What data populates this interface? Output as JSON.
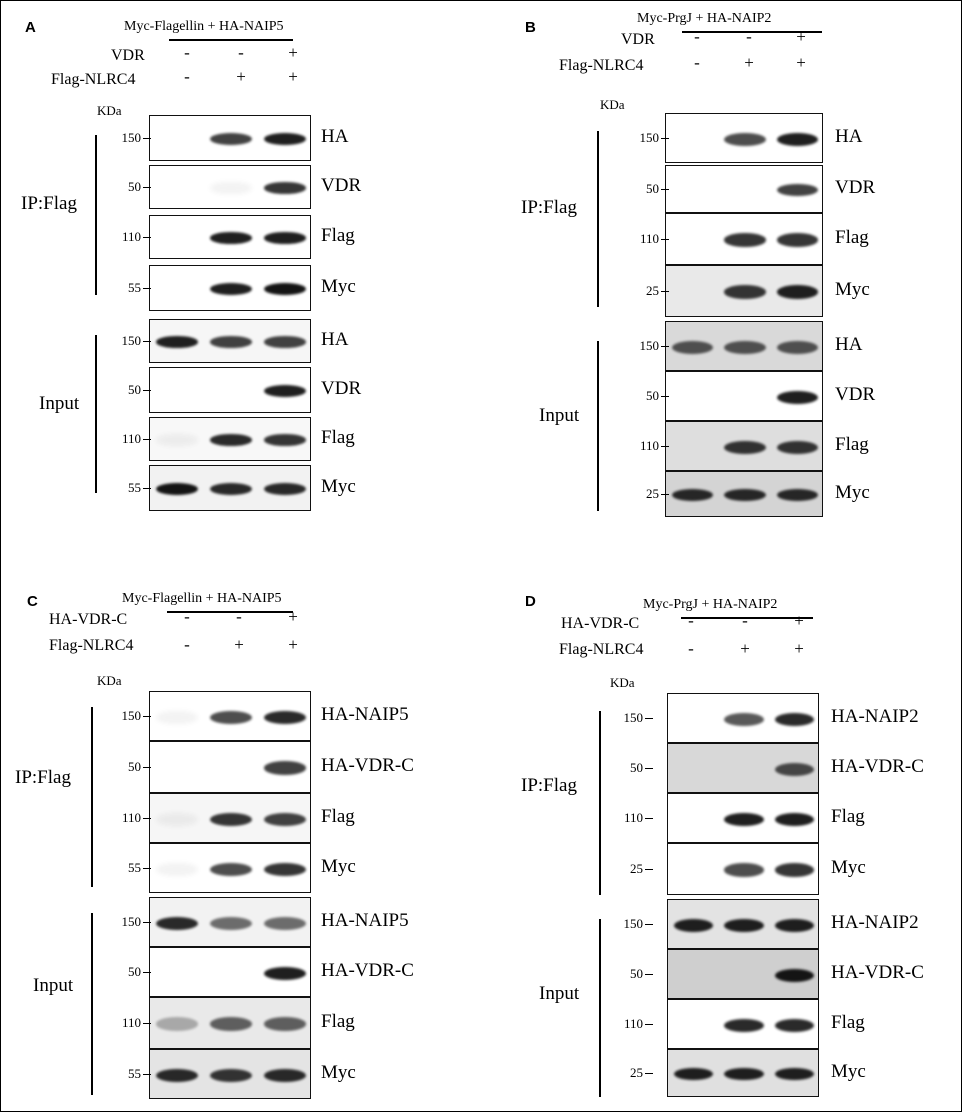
{
  "panels": [
    {
      "letter": "A",
      "header": "Myc-Flagellin  + HA-NAIP5",
      "conditions": [
        {
          "label": "VDR",
          "signs": [
            "-",
            "-",
            "+"
          ]
        },
        {
          "label": "Flag-NLRC4",
          "signs": [
            "-",
            "+",
            "+"
          ]
        }
      ],
      "kda_label": "KDa",
      "groups": [
        {
          "label": "IP:Flag",
          "blots": [
            {
              "antibody": "HA",
              "mw": "150",
              "intensities": [
                0,
                0.8,
                0.95
              ]
            },
            {
              "antibody": "VDR",
              "mw": "50",
              "intensities": [
                0,
                0.05,
                0.85
              ]
            },
            {
              "antibody": "Flag",
              "mw": "110",
              "intensities": [
                0,
                0.95,
                0.95
              ]
            },
            {
              "antibody": "Myc",
              "mw": "55",
              "intensities": [
                0,
                0.95,
                1.0
              ]
            }
          ]
        },
        {
          "label": "Input",
          "blots": [
            {
              "antibody": "HA",
              "mw": "150",
              "intensities": [
                0.95,
                0.8,
                0.8
              ]
            },
            {
              "antibody": "VDR",
              "mw": "50",
              "intensities": [
                0,
                0,
                0.95
              ]
            },
            {
              "antibody": "Flag",
              "mw": "110",
              "intensities": [
                0.05,
                0.9,
                0.85
              ]
            },
            {
              "antibody": "Myc",
              "mw": "55",
              "intensities": [
                1.0,
                0.9,
                0.9
              ]
            }
          ]
        }
      ]
    },
    {
      "letter": "B",
      "header": "Myc-PrgJ + HA-NAIP2",
      "conditions": [
        {
          "label": "VDR",
          "signs": [
            "-",
            "-",
            "+"
          ]
        },
        {
          "label": "Flag-NLRC4",
          "signs": [
            "-",
            "+",
            "+"
          ]
        }
      ],
      "kda_label": "KDa",
      "groups": [
        {
          "label": "IP:Flag",
          "blots": [
            {
              "antibody": "HA",
              "mw": "150",
              "intensities": [
                0,
                0.75,
                0.95
              ]
            },
            {
              "antibody": "VDR",
              "mw": "50",
              "intensities": [
                0,
                0,
                0.8
              ]
            },
            {
              "antibody": "Flag",
              "mw": "110",
              "intensities": [
                0,
                0.85,
                0.85
              ]
            },
            {
              "antibody": "Myc",
              "mw": "25",
              "intensities": [
                0,
                0.85,
                0.95
              ]
            }
          ]
        },
        {
          "label": "Input",
          "blots": [
            {
              "antibody": "HA",
              "mw": "150",
              "intensities": [
                0.7,
                0.7,
                0.7
              ]
            },
            {
              "antibody": "VDR",
              "mw": "50",
              "intensities": [
                0,
                0,
                0.95
              ]
            },
            {
              "antibody": "Flag",
              "mw": "110",
              "intensities": [
                0,
                0.85,
                0.85
              ]
            },
            {
              "antibody": "Myc",
              "mw": "25",
              "intensities": [
                0.9,
                0.9,
                0.9
              ]
            }
          ]
        }
      ]
    },
    {
      "letter": "C",
      "header": "Myc-Flagellin  + HA-NAIP5",
      "conditions": [
        {
          "label": "HA-VDR-C",
          "signs": [
            "-",
            "-",
            "+"
          ]
        },
        {
          "label": "Flag-NLRC4",
          "signs": [
            "-",
            "+",
            "+"
          ]
        }
      ],
      "kda_label": "KDa",
      "groups": [
        {
          "label": "IP:Flag",
          "blots": [
            {
              "antibody": "HA-NAIP5",
              "mw": "150",
              "intensities": [
                0.05,
                0.75,
                0.9
              ]
            },
            {
              "antibody": "HA-VDR-C",
              "mw": "50",
              "intensities": [
                0,
                0,
                0.8
              ]
            },
            {
              "antibody": "Flag",
              "mw": "110",
              "intensities": [
                0.05,
                0.85,
                0.8
              ]
            },
            {
              "antibody": "Myc",
              "mw": "55",
              "intensities": [
                0.05,
                0.75,
                0.85
              ]
            }
          ]
        },
        {
          "label": "Input",
          "blots": [
            {
              "antibody": "HA-NAIP5",
              "mw": "150",
              "intensities": [
                0.9,
                0.6,
                0.6
              ]
            },
            {
              "antibody": "HA-VDR-C",
              "mw": "50",
              "intensities": [
                0,
                0,
                0.95
              ]
            },
            {
              "antibody": "Flag",
              "mw": "110",
              "intensities": [
                0.3,
                0.65,
                0.65
              ]
            },
            {
              "antibody": "Myc",
              "mw": "55",
              "intensities": [
                0.9,
                0.85,
                0.9
              ]
            }
          ]
        }
      ]
    },
    {
      "letter": "D",
      "header": "Myc-PrgJ + HA-NAIP2",
      "conditions": [
        {
          "label": "HA-VDR-C",
          "signs": [
            "-",
            "-",
            "+"
          ]
        },
        {
          "label": "Flag-NLRC4",
          "signs": [
            "-",
            "+",
            "+"
          ]
        }
      ],
      "kda_label": "KDa",
      "groups": [
        {
          "label": "IP:Flag",
          "blots": [
            {
              "antibody": "HA-NAIP2",
              "mw": "150",
              "intensities": [
                0,
                0.7,
                0.9
              ]
            },
            {
              "antibody": "HA-VDR-C",
              "mw": "50",
              "intensities": [
                0,
                0,
                0.75
              ]
            },
            {
              "antibody": "Flag",
              "mw": "110",
              "intensities": [
                0,
                0.95,
                0.95
              ]
            },
            {
              "antibody": "Myc",
              "mw": "25",
              "intensities": [
                0,
                0.75,
                0.85
              ]
            }
          ]
        },
        {
          "label": "Input",
          "blots": [
            {
              "antibody": "HA-NAIP2",
              "mw": "150",
              "intensities": [
                0.95,
                0.95,
                0.95
              ]
            },
            {
              "antibody": "HA-VDR-C",
              "mw": "50",
              "intensities": [
                0,
                0,
                1.0
              ]
            },
            {
              "antibody": "Flag",
              "mw": "110",
              "intensities": [
                0,
                0.9,
                0.9
              ]
            },
            {
              "antibody": "Myc",
              "mw": "25",
              "intensities": [
                0.95,
                0.95,
                0.95
              ]
            }
          ]
        }
      ]
    }
  ],
  "colors": {
    "band": "#141414",
    "border": "#111111",
    "text": "#000000"
  }
}
